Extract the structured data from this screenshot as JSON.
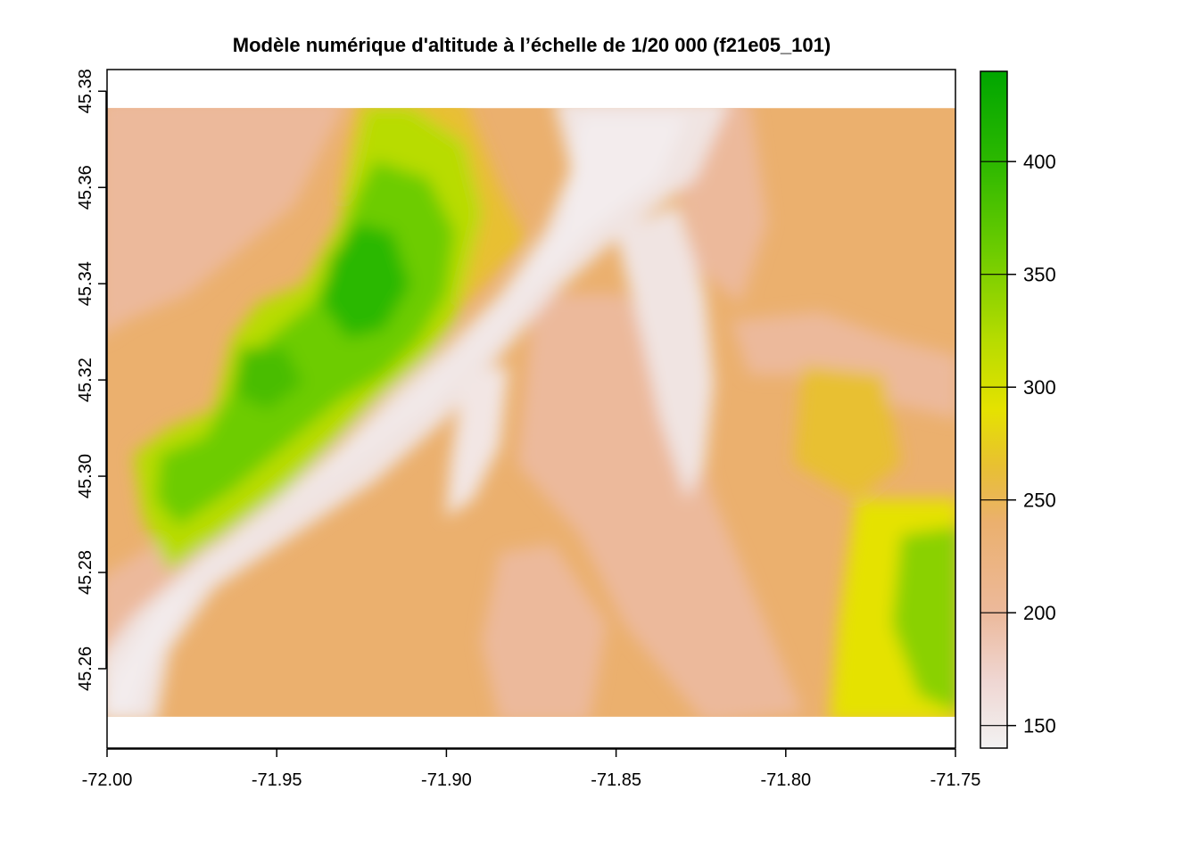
{
  "title": "Modèle numérique d'altitude à l’échelle de 1/20 000 (f21e05_101)",
  "x_axis": {
    "min": -72.0,
    "max": -71.75,
    "ticks": [
      "-72.00",
      "-71.95",
      "-71.90",
      "-71.85",
      "-71.80",
      "-71.75"
    ],
    "tick_values": [
      -72.0,
      -71.95,
      -71.9,
      -71.85,
      -71.8,
      -71.75
    ]
  },
  "y_axis": {
    "min": 45.2435,
    "max": 45.3845,
    "ticks": [
      "45.26",
      "45.28",
      "45.30",
      "45.32",
      "45.34",
      "45.36",
      "45.38"
    ],
    "tick_values": [
      45.26,
      45.28,
      45.3,
      45.32,
      45.34,
      45.36,
      45.38
    ]
  },
  "raster_extent": {
    "lon": [
      -72.0,
      -71.75
    ],
    "lat": [
      45.25,
      45.3765
    ]
  },
  "legend": {
    "min": 140,
    "max": 440,
    "ticks": [
      "150",
      "200",
      "250",
      "300",
      "350",
      "400"
    ],
    "tick_values": [
      150,
      200,
      250,
      300,
      350,
      400
    ],
    "palette": [
      {
        "value": 140,
        "color": "#f2f2f2"
      },
      {
        "value": 170,
        "color": "#efd6d2"
      },
      {
        "value": 200,
        "color": "#ecb99b"
      },
      {
        "value": 240,
        "color": "#ebb06e"
      },
      {
        "value": 265,
        "color": "#e8c032"
      },
      {
        "value": 290,
        "color": "#e5e200"
      },
      {
        "value": 320,
        "color": "#b8dc00"
      },
      {
        "value": 360,
        "color": "#6dcc00"
      },
      {
        "value": 400,
        "color": "#2cb800"
      },
      {
        "value": 440,
        "color": "#00a600"
      }
    ]
  },
  "colors": {
    "frame": "#000000",
    "background": "#ffffff"
  }
}
